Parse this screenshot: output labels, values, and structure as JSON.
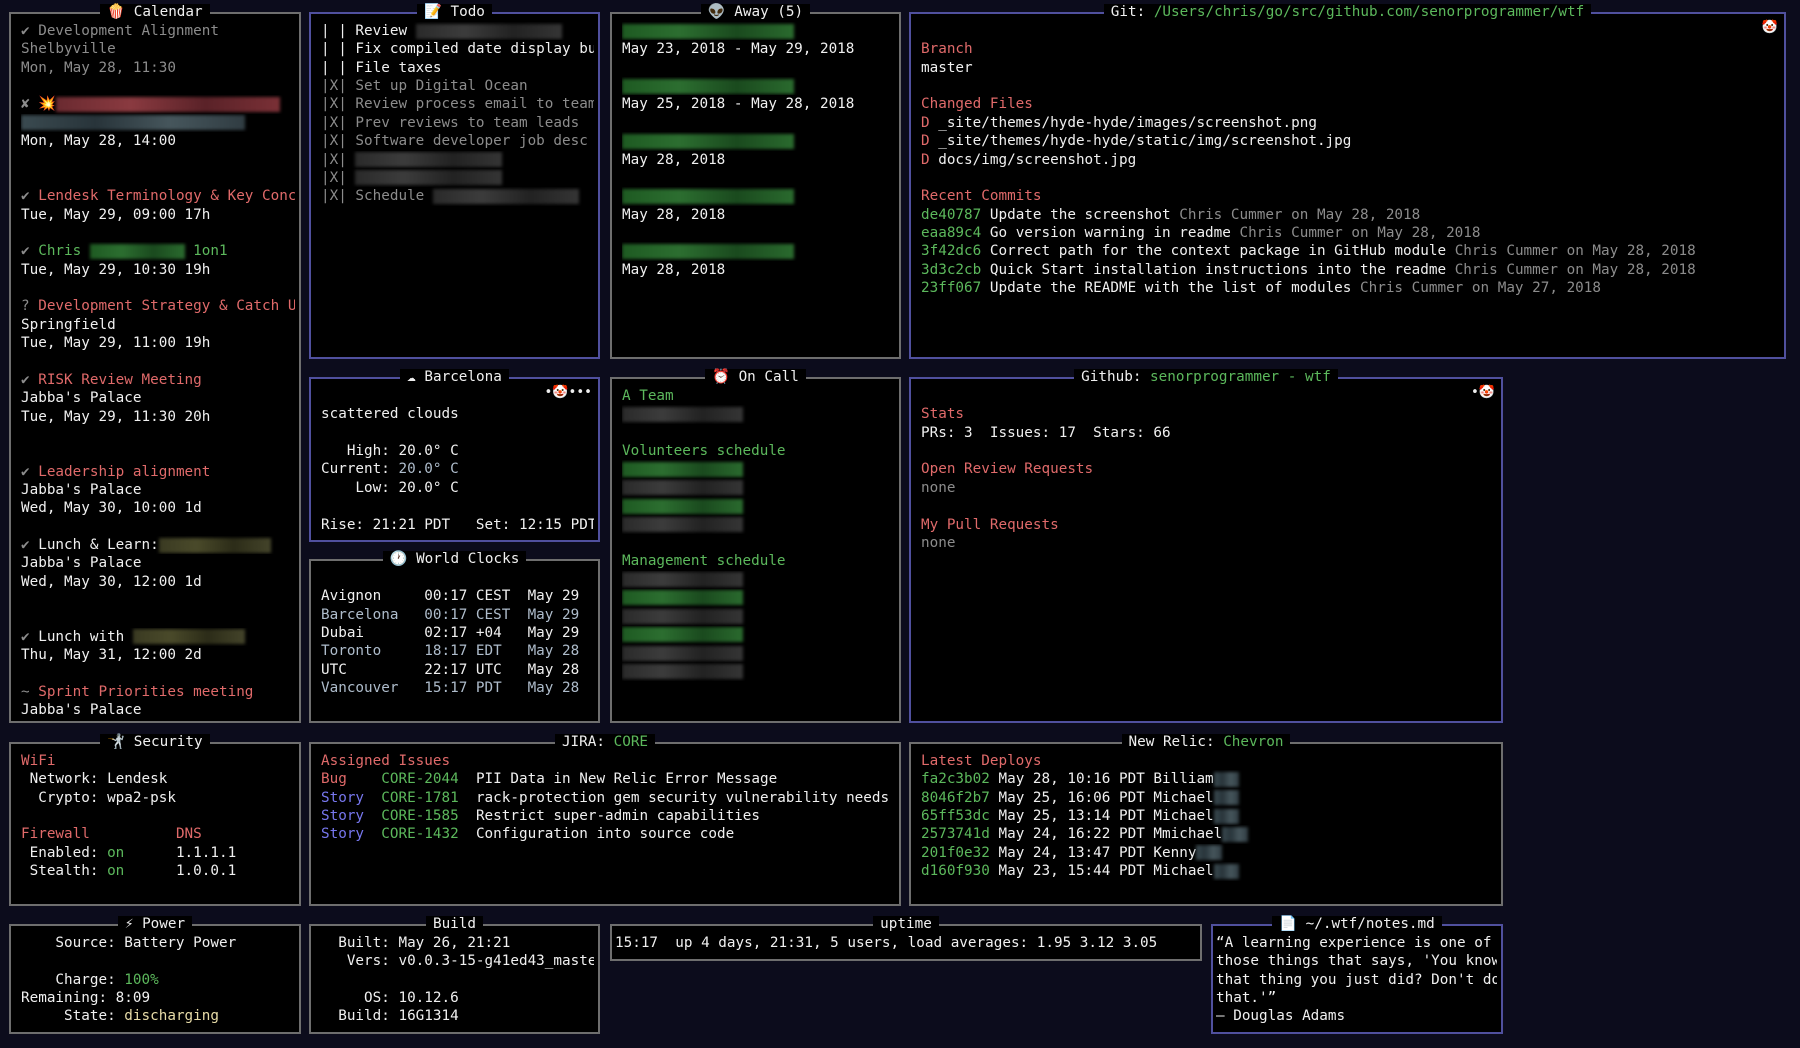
{
  "calendar": {
    "icon": "🍿",
    "title": [
      {
        "t": "Calendar",
        "c": "w"
      }
    ],
    "lines": [
      [
        {
          "t": "✔ Development Alignment",
          "c": "d"
        }
      ],
      [
        {
          "t": "Shelbyville",
          "c": "d"
        }
      ],
      [
        {
          "t": "Mon, May 28, 11:30",
          "c": "d"
        }
      ],
      [],
      [
        {
          "t": "✘ 💥",
          "c": "d"
        },
        {
          "redact": "red"
        }
      ],
      [
        {
          "redact": "slate"
        }
      ],
      [
        {
          "t": "Mon, May 28, 14:00",
          "c": "w"
        }
      ],
      [],
      [],
      [
        {
          "t": "✔ ",
          "c": "d"
        },
        {
          "t": "Lendesk Terminology & Key Conc",
          "c": "r"
        }
      ],
      [
        {
          "t": "Tue, May 29, 09:00 17h",
          "c": "w"
        }
      ],
      [],
      [
        {
          "t": "✔ ",
          "c": "d"
        },
        {
          "t": "Chris ",
          "c": "g"
        },
        {
          "redact": "green"
        },
        {
          "t": " 1on1",
          "c": "g"
        }
      ],
      [
        {
          "t": "Tue, May 29, 10:30 19h",
          "c": "w"
        }
      ],
      [],
      [
        {
          "t": "? ",
          "c": "d"
        },
        {
          "t": "Development Strategy & Catch U",
          "c": "r"
        }
      ],
      [
        {
          "t": "Springfield",
          "c": "w"
        }
      ],
      [
        {
          "t": "Tue, May 29, 11:00 19h",
          "c": "w"
        }
      ],
      [],
      [
        {
          "t": "✔ ",
          "c": "d"
        },
        {
          "t": "RISK Review Meeting",
          "c": "r"
        }
      ],
      [
        {
          "t": "Jabba's Palace",
          "c": "w"
        }
      ],
      [
        {
          "t": "Tue, May 29, 11:30 20h",
          "c": "w"
        }
      ],
      [],
      [],
      [
        {
          "t": "✔ ",
          "c": "d"
        },
        {
          "t": "Leadership alignment",
          "c": "r"
        }
      ],
      [
        {
          "t": "Jabba's Palace",
          "c": "w"
        }
      ],
      [
        {
          "t": "Wed, May 30, 10:00 1d",
          "c": "w"
        }
      ],
      [],
      [
        {
          "t": "✔ ",
          "c": "d"
        },
        {
          "t": "Lunch & Learn:",
          "c": "w"
        },
        {
          "redact": "olive"
        }
      ],
      [
        {
          "t": "Jabba's Palace",
          "c": "w"
        }
      ],
      [
        {
          "t": "Wed, May 30, 12:00 1d",
          "c": "w"
        }
      ],
      [],
      [],
      [
        {
          "t": "✔ ",
          "c": "d"
        },
        {
          "t": "Lunch with ",
          "c": "w"
        },
        {
          "redact": "olive"
        }
      ],
      [
        {
          "t": "Thu, May 31, 12:00 2d",
          "c": "w"
        }
      ],
      [],
      [
        {
          "t": "~ ",
          "c": "d"
        },
        {
          "t": "Sprint Priorities meeting",
          "c": "r"
        }
      ],
      [
        {
          "t": "Jabba's Palace",
          "c": "w"
        }
      ]
    ]
  },
  "todo": {
    "icon": "📝",
    "title": [
      {
        "t": "Todo",
        "c": "w"
      }
    ],
    "lines": [
      [
        {
          "t": "| | Review ",
          "c": "w"
        },
        {
          "redact": "gray"
        }
      ],
      [
        {
          "t": "| | Fix compiled date display bug",
          "c": "w"
        }
      ],
      [
        {
          "t": "| | File taxes",
          "c": "w"
        }
      ],
      [
        {
          "t": "|X| Set up Digital Ocean",
          "c": "d"
        }
      ],
      [
        {
          "t": "|X| Review process email to team",
          "c": "d"
        }
      ],
      [
        {
          "t": "|X| Prev reviews to team leads",
          "c": "d"
        }
      ],
      [
        {
          "t": "|X| Software developer job desc",
          "c": "d"
        }
      ],
      [
        {
          "t": "|X| ",
          "c": "d"
        },
        {
          "redact": "gray"
        }
      ],
      [
        {
          "t": "|X| ",
          "c": "d"
        },
        {
          "redact": "gray"
        }
      ],
      [
        {
          "t": "|X| Schedule ",
          "c": "d"
        },
        {
          "redact": "gray"
        }
      ]
    ]
  },
  "away": {
    "icon": "👽",
    "title": [
      {
        "t": "Away (5)",
        "c": "w"
      }
    ],
    "lines": [
      [
        {
          "redact": "green"
        }
      ],
      [
        {
          "t": "May 23, 2018 - May 29, 2018",
          "c": "w"
        }
      ],
      [],
      [
        {
          "redact": "green"
        }
      ],
      [
        {
          "t": "May 25, 2018 - May 28, 2018",
          "c": "w"
        }
      ],
      [],
      [
        {
          "redact": "green"
        }
      ],
      [
        {
          "t": "May 28, 2018",
          "c": "w"
        }
      ],
      [],
      [
        {
          "redact": "green"
        }
      ],
      [
        {
          "t": "May 28, 2018",
          "c": "w"
        }
      ],
      [],
      [
        {
          "redact": "green"
        }
      ],
      [
        {
          "t": "May 28, 2018",
          "c": "w"
        }
      ]
    ]
  },
  "git": {
    "icon": "",
    "corner_icon": "🤡",
    "title": [
      {
        "t": "Git: ",
        "c": "w"
      },
      {
        "t": "/Users/chris/go/src/github.com/senorprogrammer/wtf",
        "c": "g"
      }
    ],
    "lines": [
      [],
      [
        {
          "t": "Branch",
          "c": "r"
        }
      ],
      [
        {
          "t": "master",
          "c": "w"
        }
      ],
      [],
      [
        {
          "t": "Changed Files",
          "c": "r"
        }
      ],
      [
        {
          "t": "D ",
          "c": "r"
        },
        {
          "t": "_site/themes/hyde-hyde/images/screenshot.png",
          "c": "w"
        }
      ],
      [
        {
          "t": "D ",
          "c": "r"
        },
        {
          "t": "_site/themes/hyde-hyde/static/img/screenshot.jpg",
          "c": "w"
        }
      ],
      [
        {
          "t": "D ",
          "c": "r"
        },
        {
          "t": "docs/img/screenshot.jpg",
          "c": "w"
        }
      ],
      [],
      [
        {
          "t": "Recent Commits",
          "c": "r"
        }
      ],
      [
        {
          "t": "de40787 ",
          "c": "g"
        },
        {
          "t": "Update the screenshot ",
          "c": "w"
        },
        {
          "t": "Chris Cummer on May 28, 2018",
          "c": "d"
        }
      ],
      [
        {
          "t": "eaa89c4 ",
          "c": "g"
        },
        {
          "t": "Go version warning in readme ",
          "c": "w"
        },
        {
          "t": "Chris Cummer on May 28, 2018",
          "c": "d"
        }
      ],
      [
        {
          "t": "3f42dc6 ",
          "c": "g"
        },
        {
          "t": "Correct path for the context package in GitHub module ",
          "c": "w"
        },
        {
          "t": "Chris Cummer on May 28, 2018",
          "c": "d"
        }
      ],
      [
        {
          "t": "3d3c2cb ",
          "c": "g"
        },
        {
          "t": "Quick Start installation instructions into the readme ",
          "c": "w"
        },
        {
          "t": "Chris Cummer on May 28, 2018",
          "c": "d"
        }
      ],
      [
        {
          "t": "23ff067 ",
          "c": "g"
        },
        {
          "t": "Update the README with the list of modules ",
          "c": "w"
        },
        {
          "t": "Chris Cummer on May 27, 2018",
          "c": "d"
        }
      ]
    ]
  },
  "weather": {
    "icon": "☁",
    "corner_icon": "•🤡•••",
    "title": [
      {
        "t": "Barcelona",
        "c": "w"
      }
    ],
    "lines": [
      [],
      [
        {
          "t": "scattered clouds",
          "c": "w"
        }
      ],
      [],
      [
        {
          "t": "   High: 20.0° C",
          "c": "w"
        }
      ],
      [
        {
          "t": "Current: ",
          "c": "w"
        },
        {
          "t": "20.0° C",
          "c": "s"
        }
      ],
      [
        {
          "t": "    Low: 20.0° C",
          "c": "w"
        }
      ],
      [],
      [
        {
          "t": "Rise: 21:21 PDT   Set: 12:15 PDT",
          "c": "w"
        }
      ]
    ]
  },
  "clocks": {
    "icon": "🕐",
    "title": [
      {
        "t": "World Clocks",
        "c": "w"
      }
    ],
    "lines": [
      [],
      [
        {
          "t": "Avignon     00:17 CEST  May 29",
          "c": "w"
        }
      ],
      [
        {
          "t": "Barcelona   00:17 CEST  May 29",
          "c": "s"
        }
      ],
      [
        {
          "t": "Dubai       02:17 +04   May 29",
          "c": "w"
        }
      ],
      [
        {
          "t": "Toronto     18:17 EDT   May 28",
          "c": "s"
        }
      ],
      [
        {
          "t": "UTC         22:17 UTC   May 28",
          "c": "w"
        }
      ],
      [
        {
          "t": "Vancouver   15:17 PDT   May 28",
          "c": "s"
        }
      ]
    ]
  },
  "oncall": {
    "icon": "⏰",
    "title": [
      {
        "t": "On Call",
        "c": "w"
      }
    ],
    "lines": [
      [
        {
          "t": "A Team",
          "c": "g"
        }
      ],
      [
        {
          "redact": "gray"
        }
      ],
      [],
      [
        {
          "t": "Volunteers schedule",
          "c": "g"
        }
      ],
      [
        {
          "redact": "green"
        }
      ],
      [
        {
          "redact": "gray"
        }
      ],
      [
        {
          "redact": "green"
        }
      ],
      [
        {
          "redact": "gray"
        }
      ],
      [],
      [
        {
          "t": "Management schedule",
          "c": "g"
        }
      ],
      [
        {
          "redact": "gray"
        }
      ],
      [
        {
          "redact": "green"
        }
      ],
      [
        {
          "redact": "gray"
        }
      ],
      [
        {
          "redact": "green"
        }
      ],
      [
        {
          "redact": "gray"
        }
      ],
      [
        {
          "redact": "gray"
        }
      ]
    ]
  },
  "github": {
    "icon": "",
    "corner_icon": "•🤡",
    "title": [
      {
        "t": "Github: ",
        "c": "w"
      },
      {
        "t": "senorprogrammer - wtf",
        "c": "g"
      }
    ],
    "lines": [
      [],
      [
        {
          "t": "Stats",
          "c": "r"
        }
      ],
      [
        {
          "t": "PRs: 3  Issues: 17  Stars: 66",
          "c": "w"
        }
      ],
      [],
      [
        {
          "t": "Open Review Requests",
          "c": "r"
        }
      ],
      [
        {
          "t": "none",
          "c": "d"
        }
      ],
      [],
      [
        {
          "t": "My Pull Requests",
          "c": "r"
        }
      ],
      [
        {
          "t": "none",
          "c": "d"
        }
      ]
    ]
  },
  "security": {
    "icon": "🤺",
    "title": [
      {
        "t": "Security",
        "c": "w"
      }
    ],
    "lines": [
      [
        {
          "t": "WiFi",
          "c": "r"
        }
      ],
      [
        {
          "t": " Network: Lendesk",
          "c": "w"
        }
      ],
      [
        {
          "t": "  Crypto: wpa2-psk",
          "c": "w"
        }
      ],
      [],
      [
        {
          "t": "Firewall",
          "c": "r"
        },
        {
          "t": "          ",
          "c": "w"
        },
        {
          "t": "DNS",
          "c": "r"
        }
      ],
      [
        {
          "t": " Enabled: ",
          "c": "w"
        },
        {
          "t": "on",
          "c": "g"
        },
        {
          "t": "      1.1.1.1",
          "c": "w"
        }
      ],
      [
        {
          "t": " Stealth: ",
          "c": "w"
        },
        {
          "t": "on",
          "c": "g"
        },
        {
          "t": "      1.0.0.1",
          "c": "w"
        }
      ]
    ]
  },
  "jira": {
    "icon": "",
    "title": [
      {
        "t": "JIRA: ",
        "c": "w"
      },
      {
        "t": "CORE",
        "c": "g"
      }
    ],
    "lines": [
      [
        {
          "t": "Assigned Issues",
          "c": "r"
        }
      ],
      [
        {
          "t": "Bug    ",
          "c": "r"
        },
        {
          "t": "CORE-2044",
          "c": "g"
        },
        {
          "t": "  PII Data in New Relic Error Message",
          "c": "w"
        }
      ],
      [
        {
          "t": "Story  ",
          "c": "b"
        },
        {
          "t": "CORE-1781",
          "c": "g"
        },
        {
          "t": "  rack-protection gem security vulnerability needs",
          "c": "w"
        }
      ],
      [
        {
          "t": "Story  ",
          "c": "b"
        },
        {
          "t": "CORE-1585",
          "c": "g"
        },
        {
          "t": "  Restrict super-admin capabilities",
          "c": "w"
        }
      ],
      [
        {
          "t": "Story  ",
          "c": "b"
        },
        {
          "t": "CORE-1432",
          "c": "g"
        },
        {
          "t": "  Configuration into source code",
          "c": "w"
        }
      ]
    ]
  },
  "newrelic": {
    "icon": "",
    "title": [
      {
        "t": "New Relic: ",
        "c": "w"
      },
      {
        "t": "Chevron",
        "c": "g"
      }
    ],
    "lines": [
      [
        {
          "t": "Latest Deploys",
          "c": "r"
        }
      ],
      [
        {
          "t": "fa2c3b02",
          "c": "g"
        },
        {
          "t": " May 28, 10:16 PDT Billiam",
          "c": "w"
        },
        {
          "redact": "slate"
        }
      ],
      [
        {
          "t": "8046f2b7",
          "c": "g"
        },
        {
          "t": " May 25, 16:06 PDT Michael",
          "c": "w"
        },
        {
          "redact": "slate"
        }
      ],
      [
        {
          "t": "65ff53dc",
          "c": "g"
        },
        {
          "t": " May 25, 13:14 PDT Michael",
          "c": "w"
        },
        {
          "redact": "slate"
        }
      ],
      [
        {
          "t": "2573741d",
          "c": "g"
        },
        {
          "t": " May 24, 16:22 PDT Mmichael",
          "c": "w"
        },
        {
          "redact": "slate"
        }
      ],
      [
        {
          "t": "201f0e32",
          "c": "g"
        },
        {
          "t": " May 24, 13:47 PDT Kenny",
          "c": "w"
        },
        {
          "redact": "slate"
        }
      ],
      [
        {
          "t": "d160f930",
          "c": "g"
        },
        {
          "t": " May 23, 15:44 PDT Michael",
          "c": "w"
        },
        {
          "redact": "slate"
        }
      ]
    ]
  },
  "power": {
    "icon": "⚡",
    "title": [
      {
        "t": "Power",
        "c": "w"
      }
    ],
    "lines": [
      [
        {
          "t": "    Source: Battery Power",
          "c": "w"
        }
      ],
      [],
      [
        {
          "t": "    Charge: ",
          "c": "w"
        },
        {
          "t": "100%",
          "c": "g"
        }
      ],
      [
        {
          "t": "Remaining: 8:09",
          "c": "w"
        }
      ],
      [
        {
          "t": "     State: ",
          "c": "w"
        },
        {
          "t": "discharging",
          "c": "y"
        }
      ]
    ]
  },
  "build": {
    "icon": "",
    "title": [
      {
        "t": "Build",
        "c": "w"
      }
    ],
    "lines": [
      [
        {
          "t": "  Built: May 26, 21:21",
          "c": "w"
        }
      ],
      [
        {
          "t": "   Vers: v0.0.3-15-g41ed43_maste",
          "c": "w"
        }
      ],
      [],
      [
        {
          "t": "     OS: 10.12.6",
          "c": "w"
        }
      ],
      [
        {
          "t": "  Build: 16G1314",
          "c": "w"
        }
      ]
    ]
  },
  "uptime": {
    "icon": "",
    "title": [
      {
        "t": "uptime",
        "c": "w"
      }
    ],
    "lines": [
      [
        {
          "t": "15:17  up 4 days, 21:31, 5 users, load averages: 1.95 3.12 3.05",
          "c": "w"
        }
      ]
    ]
  },
  "notes": {
    "icon": "📄",
    "title": [
      {
        "t": "~/.wtf/notes.md",
        "c": "w"
      }
    ],
    "lines": [
      [
        {
          "t": "“A learning experience is one of",
          "c": "w"
        }
      ],
      [
        {
          "t": "those things that says, 'You know",
          "c": "w"
        }
      ],
      [
        {
          "t": "that thing you just did? Don't do",
          "c": "w"
        }
      ],
      [
        {
          "t": "that.'”",
          "c": "w"
        }
      ],
      [
        {
          "t": "– Douglas Adams",
          "c": "w"
        }
      ]
    ]
  }
}
